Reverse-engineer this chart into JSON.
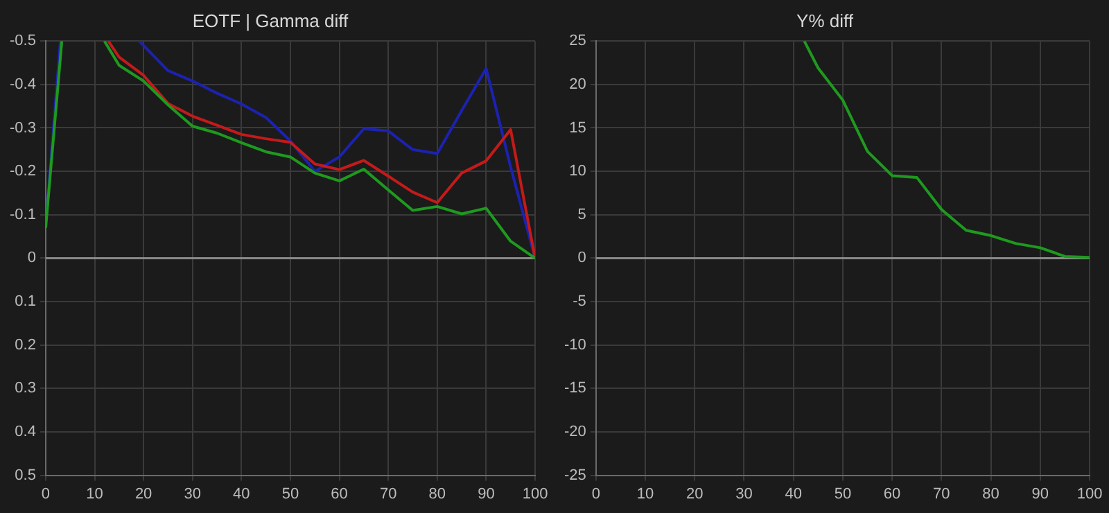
{
  "chart_data": [
    {
      "type": "line",
      "title": "EOTF | Gamma diff",
      "xlim": [
        0,
        100
      ],
      "xticks": [
        0,
        10,
        20,
        30,
        40,
        50,
        60,
        70,
        80,
        90,
        100
      ],
      "ylim": [
        0.5,
        -0.5
      ],
      "yticks": [
        -0.5,
        -0.4,
        -0.3,
        -0.2,
        -0.1,
        0,
        0.1,
        0.2,
        0.3,
        0.4,
        0.5
      ],
      "grid": true,
      "legend": false,
      "marker": "none",
      "line_style": "solid",
      "ref_lines": [
        {
          "axis": "y",
          "value": 0,
          "color": "#8a8a8a"
        }
      ],
      "series": [
        {
          "color": "#1e9a1e",
          "x": [
            0,
            3.3,
            5,
            12,
            15,
            20,
            25,
            30,
            35,
            40,
            45,
            50,
            55,
            60,
            65,
            70,
            75,
            80,
            85,
            90,
            95,
            100
          ],
          "values": [
            -0.07,
            -0.5,
            null,
            -0.5,
            -0.444,
            -0.408,
            -0.353,
            -0.304,
            -0.288,
            -0.266,
            -0.245,
            -0.233,
            -0.196,
            -0.178,
            -0.205,
            -0.157,
            -0.11,
            -0.119,
            -0.102,
            -0.115,
            -0.039,
            0
          ]
        },
        {
          "color": "#c41a1a",
          "x": [
            12.8,
            15,
            20,
            25,
            30,
            35,
            40,
            45,
            50,
            55,
            60,
            65,
            70,
            75,
            80,
            85,
            90,
            95,
            100
          ],
          "values": [
            -0.5,
            -0.463,
            -0.421,
            -0.356,
            -0.327,
            -0.306,
            -0.285,
            -0.275,
            -0.267,
            -0.217,
            -0.204,
            -0.225,
            -0.189,
            -0.152,
            -0.128,
            -0.196,
            -0.224,
            -0.296,
            0
          ]
        },
        {
          "color": "#1c22b0",
          "x": [
            0,
            3,
            5,
            19.1,
            25,
            30,
            35,
            40,
            45,
            50,
            55,
            60,
            65,
            70,
            75,
            80,
            85,
            90,
            95,
            100
          ],
          "values": [
            -0.075,
            -0.5,
            null,
            -0.5,
            -0.432,
            -0.408,
            -0.38,
            -0.355,
            -0.324,
            -0.27,
            -0.2,
            -0.233,
            -0.298,
            -0.293,
            -0.25,
            -0.241,
            -0.34,
            -0.437,
            -0.21,
            0
          ]
        }
      ]
    },
    {
      "type": "line",
      "title": "Y% diff",
      "xlim": [
        0,
        100
      ],
      "xticks": [
        0,
        10,
        20,
        30,
        40,
        50,
        60,
        70,
        80,
        90,
        100
      ],
      "ylim": [
        -25,
        25
      ],
      "yticks": [
        -25,
        -20,
        -15,
        -10,
        -5,
        0,
        5,
        10,
        15,
        20,
        25
      ],
      "grid": true,
      "legend": false,
      "marker": "none",
      "line_style": "solid",
      "ref_lines": [
        {
          "axis": "y",
          "value": 0,
          "color": "#8a8a8a"
        }
      ],
      "series": [
        {
          "color": "#1e9a1e",
          "x": [
            42.2,
            45,
            50,
            55,
            60,
            65,
            70,
            75,
            80,
            85,
            90,
            95,
            100
          ],
          "values": [
            25,
            21.9,
            18.2,
            12.3,
            9.5,
            9.3,
            5.6,
            3.2,
            2.6,
            1.7,
            1.2,
            0.2,
            0.1
          ]
        }
      ]
    }
  ]
}
